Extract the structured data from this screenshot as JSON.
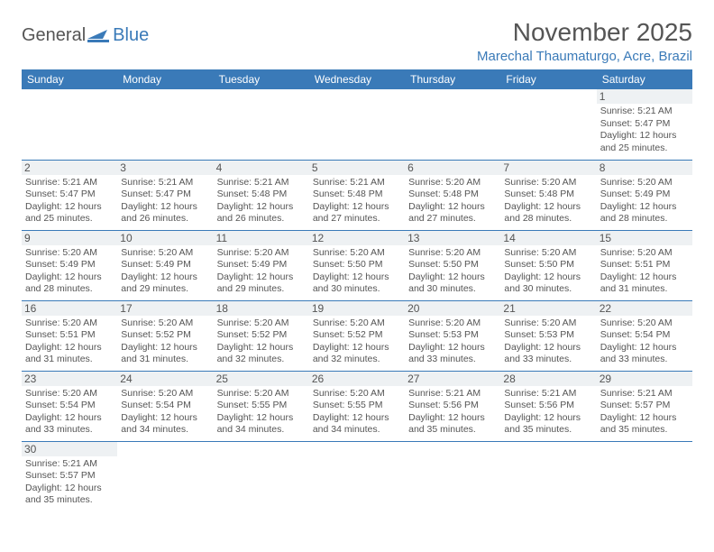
{
  "logo": {
    "text1": "General",
    "text2": "Blue"
  },
  "title": "November 2025",
  "location": "Marechal Thaumaturgo, Acre, Brazil",
  "colors": {
    "brand": "#3a7ab8",
    "text": "#555555",
    "daybg": "#eef1f3",
    "bg": "#ffffff"
  },
  "dayHeaders": [
    "Sunday",
    "Monday",
    "Tuesday",
    "Wednesday",
    "Thursday",
    "Friday",
    "Saturday"
  ],
  "startOffset": 6,
  "days": [
    {
      "n": "1",
      "sr": "Sunrise: 5:21 AM",
      "ss": "Sunset: 5:47 PM",
      "dl1": "Daylight: 12 hours",
      "dl2": "and 25 minutes."
    },
    {
      "n": "2",
      "sr": "Sunrise: 5:21 AM",
      "ss": "Sunset: 5:47 PM",
      "dl1": "Daylight: 12 hours",
      "dl2": "and 25 minutes."
    },
    {
      "n": "3",
      "sr": "Sunrise: 5:21 AM",
      "ss": "Sunset: 5:47 PM",
      "dl1": "Daylight: 12 hours",
      "dl2": "and 26 minutes."
    },
    {
      "n": "4",
      "sr": "Sunrise: 5:21 AM",
      "ss": "Sunset: 5:48 PM",
      "dl1": "Daylight: 12 hours",
      "dl2": "and 26 minutes."
    },
    {
      "n": "5",
      "sr": "Sunrise: 5:21 AM",
      "ss": "Sunset: 5:48 PM",
      "dl1": "Daylight: 12 hours",
      "dl2": "and 27 minutes."
    },
    {
      "n": "6",
      "sr": "Sunrise: 5:20 AM",
      "ss": "Sunset: 5:48 PM",
      "dl1": "Daylight: 12 hours",
      "dl2": "and 27 minutes."
    },
    {
      "n": "7",
      "sr": "Sunrise: 5:20 AM",
      "ss": "Sunset: 5:48 PM",
      "dl1": "Daylight: 12 hours",
      "dl2": "and 28 minutes."
    },
    {
      "n": "8",
      "sr": "Sunrise: 5:20 AM",
      "ss": "Sunset: 5:49 PM",
      "dl1": "Daylight: 12 hours",
      "dl2": "and 28 minutes."
    },
    {
      "n": "9",
      "sr": "Sunrise: 5:20 AM",
      "ss": "Sunset: 5:49 PM",
      "dl1": "Daylight: 12 hours",
      "dl2": "and 28 minutes."
    },
    {
      "n": "10",
      "sr": "Sunrise: 5:20 AM",
      "ss": "Sunset: 5:49 PM",
      "dl1": "Daylight: 12 hours",
      "dl2": "and 29 minutes."
    },
    {
      "n": "11",
      "sr": "Sunrise: 5:20 AM",
      "ss": "Sunset: 5:49 PM",
      "dl1": "Daylight: 12 hours",
      "dl2": "and 29 minutes."
    },
    {
      "n": "12",
      "sr": "Sunrise: 5:20 AM",
      "ss": "Sunset: 5:50 PM",
      "dl1": "Daylight: 12 hours",
      "dl2": "and 30 minutes."
    },
    {
      "n": "13",
      "sr": "Sunrise: 5:20 AM",
      "ss": "Sunset: 5:50 PM",
      "dl1": "Daylight: 12 hours",
      "dl2": "and 30 minutes."
    },
    {
      "n": "14",
      "sr": "Sunrise: 5:20 AM",
      "ss": "Sunset: 5:50 PM",
      "dl1": "Daylight: 12 hours",
      "dl2": "and 30 minutes."
    },
    {
      "n": "15",
      "sr": "Sunrise: 5:20 AM",
      "ss": "Sunset: 5:51 PM",
      "dl1": "Daylight: 12 hours",
      "dl2": "and 31 minutes."
    },
    {
      "n": "16",
      "sr": "Sunrise: 5:20 AM",
      "ss": "Sunset: 5:51 PM",
      "dl1": "Daylight: 12 hours",
      "dl2": "and 31 minutes."
    },
    {
      "n": "17",
      "sr": "Sunrise: 5:20 AM",
      "ss": "Sunset: 5:52 PM",
      "dl1": "Daylight: 12 hours",
      "dl2": "and 31 minutes."
    },
    {
      "n": "18",
      "sr": "Sunrise: 5:20 AM",
      "ss": "Sunset: 5:52 PM",
      "dl1": "Daylight: 12 hours",
      "dl2": "and 32 minutes."
    },
    {
      "n": "19",
      "sr": "Sunrise: 5:20 AM",
      "ss": "Sunset: 5:52 PM",
      "dl1": "Daylight: 12 hours",
      "dl2": "and 32 minutes."
    },
    {
      "n": "20",
      "sr": "Sunrise: 5:20 AM",
      "ss": "Sunset: 5:53 PM",
      "dl1": "Daylight: 12 hours",
      "dl2": "and 33 minutes."
    },
    {
      "n": "21",
      "sr": "Sunrise: 5:20 AM",
      "ss": "Sunset: 5:53 PM",
      "dl1": "Daylight: 12 hours",
      "dl2": "and 33 minutes."
    },
    {
      "n": "22",
      "sr": "Sunrise: 5:20 AM",
      "ss": "Sunset: 5:54 PM",
      "dl1": "Daylight: 12 hours",
      "dl2": "and 33 minutes."
    },
    {
      "n": "23",
      "sr": "Sunrise: 5:20 AM",
      "ss": "Sunset: 5:54 PM",
      "dl1": "Daylight: 12 hours",
      "dl2": "and 33 minutes."
    },
    {
      "n": "24",
      "sr": "Sunrise: 5:20 AM",
      "ss": "Sunset: 5:54 PM",
      "dl1": "Daylight: 12 hours",
      "dl2": "and 34 minutes."
    },
    {
      "n": "25",
      "sr": "Sunrise: 5:20 AM",
      "ss": "Sunset: 5:55 PM",
      "dl1": "Daylight: 12 hours",
      "dl2": "and 34 minutes."
    },
    {
      "n": "26",
      "sr": "Sunrise: 5:20 AM",
      "ss": "Sunset: 5:55 PM",
      "dl1": "Daylight: 12 hours",
      "dl2": "and 34 minutes."
    },
    {
      "n": "27",
      "sr": "Sunrise: 5:21 AM",
      "ss": "Sunset: 5:56 PM",
      "dl1": "Daylight: 12 hours",
      "dl2": "and 35 minutes."
    },
    {
      "n": "28",
      "sr": "Sunrise: 5:21 AM",
      "ss": "Sunset: 5:56 PM",
      "dl1": "Daylight: 12 hours",
      "dl2": "and 35 minutes."
    },
    {
      "n": "29",
      "sr": "Sunrise: 5:21 AM",
      "ss": "Sunset: 5:57 PM",
      "dl1": "Daylight: 12 hours",
      "dl2": "and 35 minutes."
    },
    {
      "n": "30",
      "sr": "Sunrise: 5:21 AM",
      "ss": "Sunset: 5:57 PM",
      "dl1": "Daylight: 12 hours",
      "dl2": "and 35 minutes."
    }
  ]
}
